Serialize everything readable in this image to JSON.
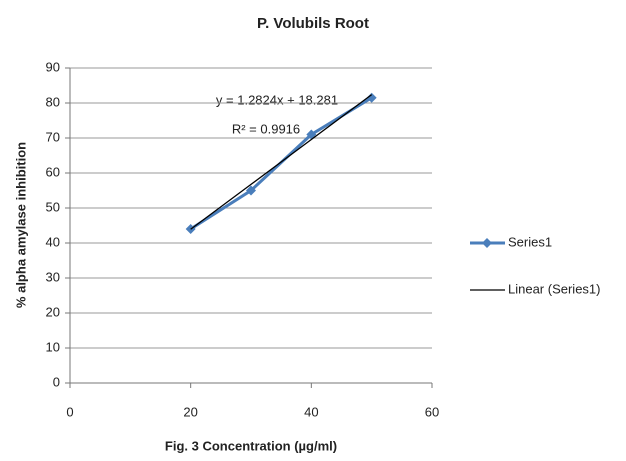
{
  "chart_data": {
    "type": "line",
    "title": "P. Volubils Root",
    "x_label": "Fig. 3 Concentration (µg/ml)",
    "y_label": "% alpha amylase inhibition",
    "annotations": [
      "y = 1.2824x + 18.281",
      "R² = 0.9916"
    ],
    "x": [
      20,
      30,
      40,
      50
    ],
    "series": [
      {
        "name": "Series1",
        "color": "#4a7ebb",
        "values": [
          44,
          55,
          71,
          81.5
        ],
        "marker": "diamond"
      },
      {
        "name": "Linear (Series1)",
        "color": "#000000",
        "values": [
          43.929,
          56.753,
          69.577,
          82.401
        ],
        "marker": "none"
      }
    ],
    "xlim": [
      0,
      60
    ],
    "xticks": [
      0,
      20,
      40,
      60
    ],
    "ylim": [
      0,
      90
    ],
    "yticks": [
      0,
      10,
      20,
      30,
      40,
      50,
      60,
      70,
      80,
      90
    ],
    "grid": true,
    "legend": "right"
  }
}
